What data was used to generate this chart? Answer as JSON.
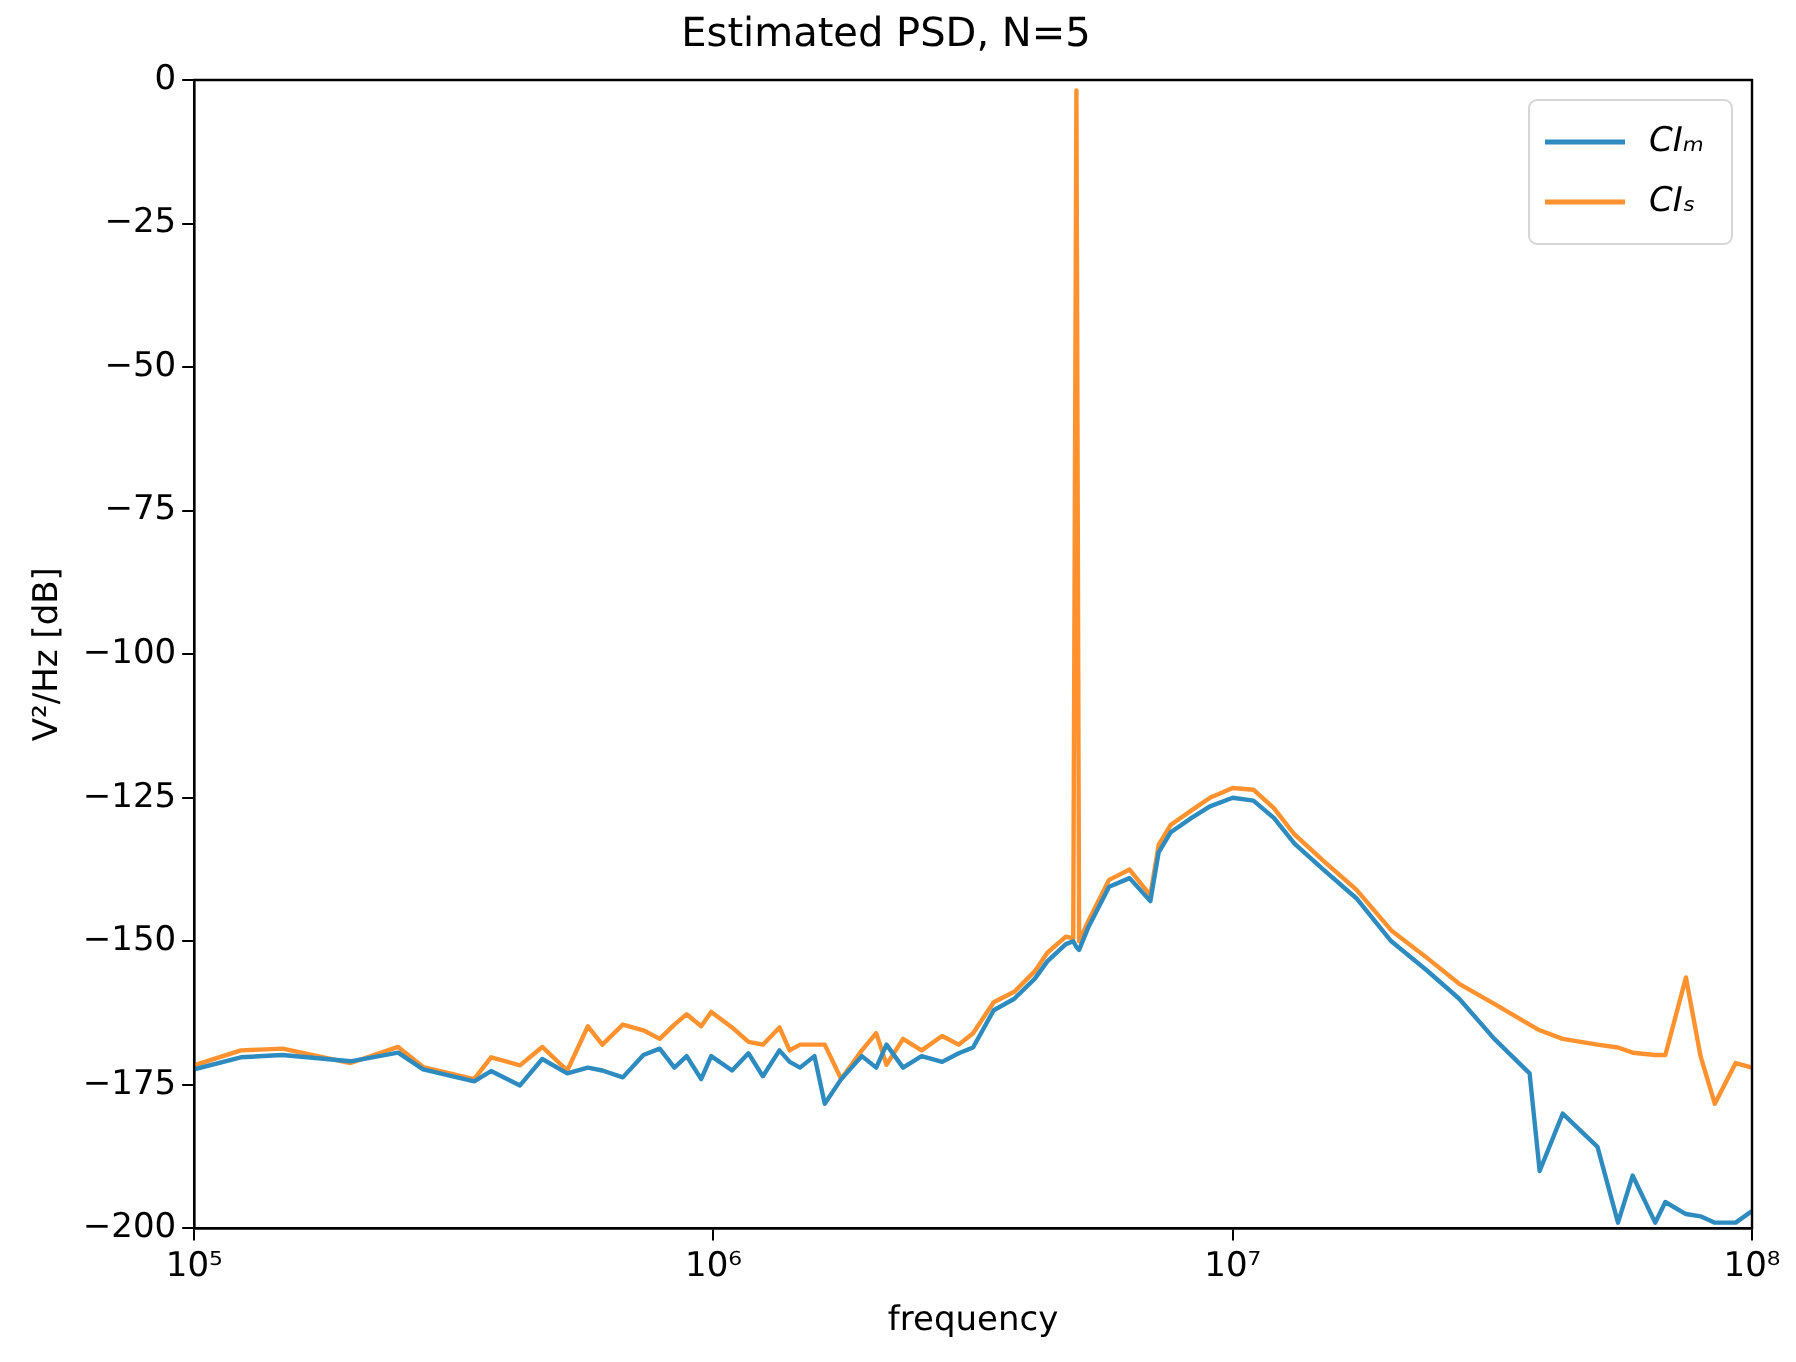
{
  "chart_data": {
    "type": "line",
    "title": "Estimated PSD, N=5",
    "xlabel": "frequency",
    "ylabel": "V²/Hz [dB]",
    "log": "x",
    "grid": false,
    "legend": "top right",
    "marker": "none",
    "line_style": "solid",
    "xlim": [
      100000,
      100000000
    ],
    "xticks": [
      {
        "value": 100000,
        "label": "10⁵"
      },
      {
        "value": 1000000,
        "label": "10⁶"
      },
      {
        "value": 10000000,
        "label": "10⁷"
      },
      {
        "value": 100000000,
        "label": "10⁸"
      }
    ],
    "ylim": [
      -200,
      0
    ],
    "yticks": [
      -200,
      -175,
      -150,
      -125,
      -100,
      -75,
      -50,
      -25,
      0
    ],
    "x": [
      100000,
      123000,
      148000,
      200000,
      247000,
      276000,
      346000,
      373000,
      424000,
      468000,
      523000,
      573000,
      611000,
      669000,
      733000,
      788000,
      841000,
      888000,
      947000,
      990000,
      1086000,
      1168000,
      1245000,
      1340000,
      1402000,
      1468000,
      1565000,
      1638000,
      1762000,
      1931000,
      2058000,
      2154000,
      2318000,
      2517000,
      2757000,
      2967000,
      3162000,
      3465000,
      3796000,
      4159000,
      4395000,
      4771000,
      4930000,
      5000000,
      5060000,
      5275000,
      5780000,
      6330000,
      6940000,
      7200000,
      7600000,
      8330000,
      9040000,
      10000000,
      10960000,
      12000000,
      13150000,
      14950000,
      17300000,
      20200000,
      23600000,
      27300000,
      31900000,
      37300000,
      39000000,
      43200000,
      50400000,
      55200000,
      58900000,
      65100000,
      68100000,
      74600000,
      79600000,
      84800000,
      93000000,
      100000000
    ],
    "series": [
      {
        "name": "CIₘ",
        "color": "#2e8bc0",
        "values": [
          -172.3,
          -170.2,
          -169.8,
          -170.9,
          -169.4,
          -172.3,
          -174.4,
          -172.6,
          -175.1,
          -170.5,
          -173,
          -172,
          -172.5,
          -173.7,
          -169.8,
          -168.7,
          -172,
          -170,
          -174,
          -170,
          -172.5,
          -169.5,
          -173.5,
          -169,
          -171,
          -172,
          -170,
          -178.3,
          -174,
          -170,
          -172,
          -168,
          -172,
          -170,
          -171,
          -169.5,
          -168.5,
          -162,
          -160,
          -156.5,
          -153.5,
          -150.5,
          -150,
          -151,
          -151.5,
          -147.5,
          -140.5,
          -139,
          -143,
          -134.5,
          -131,
          -128.5,
          -126.5,
          -125,
          -125.5,
          -128.5,
          -133,
          -137.5,
          -142.5,
          -150,
          -155,
          -160,
          -167,
          -173,
          -190,
          -180,
          -185.8,
          -199,
          -190.8,
          -199,
          -195.4,
          -197.5,
          -197.9,
          -199,
          -199,
          -197
        ]
      },
      {
        "name": "CIₛ",
        "color": "#ff922e",
        "values": [
          -171.6,
          -169,
          -168.7,
          -171.2,
          -168.4,
          -171.9,
          -174,
          -170.2,
          -171.6,
          -168.4,
          -172.5,
          -164.8,
          -168,
          -164.5,
          -165.5,
          -167,
          -164.5,
          -162.7,
          -164.8,
          -162.3,
          -165,
          -167.5,
          -168,
          -165,
          -169,
          -168,
          -168,
          -168,
          -174,
          -169,
          -166,
          -171.5,
          -167,
          -169,
          -166.5,
          -168,
          -166,
          -160.6,
          -158.8,
          -155.2,
          -152,
          -149.2,
          -149.5,
          -1.8,
          -150,
          -146.4,
          -139.3,
          -137.5,
          -142,
          -133.2,
          -129.7,
          -127.2,
          -125,
          -123.3,
          -123.6,
          -126.8,
          -131.4,
          -136,
          -141,
          -148.1,
          -152.8,
          -157.4,
          -160.9,
          -164.5,
          -165.5,
          -167,
          -168,
          -168.5,
          -169.4,
          -169.8,
          -169.8,
          -156.3,
          -170,
          -178.3,
          -171.2,
          -172
        ]
      }
    ]
  }
}
